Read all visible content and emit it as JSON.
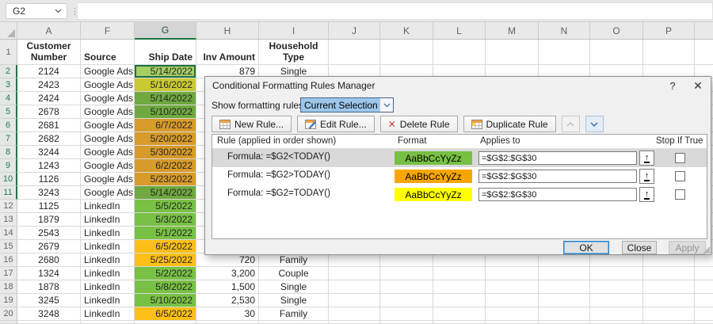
{
  "topbar": {
    "name_box_value": "G2",
    "formula_bar_value": "",
    "separator_dots": "⋮"
  },
  "colors": {
    "g_active": "#a5cf63",
    "g_green_selected": "#6fa93f",
    "g_orange_selected": "#d79b2b",
    "g_yellow_selected": "#c9c934",
    "g_green": "#79c145",
    "g_orange": "#fcbf17",
    "swatch_green": "#77c043",
    "swatch_orange": "#f8a602",
    "swatch_yellow": "#ffff00",
    "selection_accent": "#217346"
  },
  "spreadsheet": {
    "column_labels": [
      "",
      "A",
      "F",
      "G",
      "H",
      "I",
      "J",
      "K",
      "L",
      "M",
      "N",
      "O",
      "P",
      ""
    ],
    "header_row": {
      "row_number": "1",
      "A": "Customer Number",
      "F": "Source",
      "G": "Ship Date",
      "H": "Inv Amount",
      "I": "Household Type"
    },
    "rows": [
      {
        "n": "2",
        "a": "2124",
        "f": "Google Ads",
        "g": "5/14/2022",
        "gc": "g_active",
        "h": "879",
        "i": "Single"
      },
      {
        "n": "3",
        "a": "2423",
        "f": "Google Ads",
        "g": "5/16/2022",
        "gc": "g_yellow_selected",
        "h": "",
        "i": ""
      },
      {
        "n": "4",
        "a": "2424",
        "f": "Google Ads",
        "g": "5/14/2022",
        "gc": "g_green_selected",
        "h": "",
        "i": ""
      },
      {
        "n": "5",
        "a": "2678",
        "f": "Google Ads",
        "g": "5/10/2022",
        "gc": "g_green_selected",
        "h": "",
        "i": ""
      },
      {
        "n": "6",
        "a": "2681",
        "f": "Google Ads",
        "g": "6/7/2022",
        "gc": "g_orange_selected",
        "h": "",
        "i": ""
      },
      {
        "n": "7",
        "a": "2682",
        "f": "Google Ads",
        "g": "5/20/2022",
        "gc": "g_orange_selected",
        "h": "",
        "i": ""
      },
      {
        "n": "8",
        "a": "3244",
        "f": "Google Ads",
        "g": "5/30/2022",
        "gc": "g_orange_selected",
        "h": "",
        "i": ""
      },
      {
        "n": "9",
        "a": "1243",
        "f": "Google Ads",
        "g": "6/2/2022",
        "gc": "g_orange_selected",
        "h": "",
        "i": ""
      },
      {
        "n": "10",
        "a": "1126",
        "f": "Google Ads",
        "g": "5/23/2022",
        "gc": "g_orange_selected",
        "h": "",
        "i": ""
      },
      {
        "n": "11",
        "a": "3243",
        "f": "Google Ads",
        "g": "5/14/2022",
        "gc": "g_green_selected",
        "h": "",
        "i": ""
      },
      {
        "n": "12",
        "a": "1125",
        "f": "LinkedIn",
        "g": "5/5/2022",
        "gc": "g_green",
        "h": "",
        "i": ""
      },
      {
        "n": "13",
        "a": "1879",
        "f": "LinkedIn",
        "g": "5/3/2022",
        "gc": "g_green",
        "h": "",
        "i": ""
      },
      {
        "n": "14",
        "a": "2543",
        "f": "LinkedIn",
        "g": "5/1/2022",
        "gc": "g_green",
        "h": "",
        "i": ""
      },
      {
        "n": "15",
        "a": "2679",
        "f": "LinkedIn",
        "g": "6/5/2022",
        "gc": "g_orange",
        "h": "",
        "i": ""
      },
      {
        "n": "16",
        "a": "2680",
        "f": "LinkedIn",
        "g": "5/25/2022",
        "gc": "g_orange",
        "h": "720",
        "i": "Family"
      },
      {
        "n": "17",
        "a": "1324",
        "f": "LinkedIn",
        "g": "5/2/2022",
        "gc": "g_green",
        "h": "3,200",
        "i": "Couple"
      },
      {
        "n": "18",
        "a": "1878",
        "f": "LinkedIn",
        "g": "5/8/2022",
        "gc": "g_green",
        "h": "1,500",
        "i": "Single"
      },
      {
        "n": "19",
        "a": "3245",
        "f": "LinkedIn",
        "g": "5/10/2022",
        "gc": "g_green",
        "h": "2,530",
        "i": "Single"
      },
      {
        "n": "20",
        "a": "3248",
        "f": "LinkedIn",
        "g": "6/5/2022",
        "gc": "g_orange",
        "h": "30",
        "i": "Family"
      }
    ]
  },
  "dialog": {
    "title": "Conditional Formatting Rules Manager",
    "help_label": "?",
    "close_label": "✕",
    "show_rules_label": "Show formatting rules for:",
    "scope_value": "Current Selection",
    "toolbar": {
      "new_rule": "New Rule...",
      "edit_rule": "Edit Rule...",
      "delete_rule": "Delete Rule",
      "delete_x": "✕",
      "duplicate_rule": "Duplicate Rule"
    },
    "list_headers": {
      "rule": "Rule (applied in order shown)",
      "format": "Format",
      "applies_to": "Applies to",
      "stop_if_true": "Stop If True"
    },
    "rules": [
      {
        "formula": "Formula: =$G2<TODAY()",
        "swatch_text": "AaBbCcYyZz",
        "swatch": "swatch_green",
        "applies_to": "=$G$2:$G$30",
        "selected": true
      },
      {
        "formula": "Formula: =$G2>TODAY()",
        "swatch_text": "AaBbCcYyZz",
        "swatch": "swatch_orange",
        "applies_to": "=$G$2:$G$30",
        "selected": false
      },
      {
        "formula": "Formula: =$G2=TODAY()",
        "swatch_text": "AaBbCcYyZz",
        "swatch": "swatch_yellow",
        "applies_to": "=$G$2:$G$30",
        "selected": false
      }
    ],
    "range_arrow_glyph": "↑",
    "buttons": {
      "ok": "OK",
      "close": "Close",
      "apply": "Apply"
    }
  }
}
